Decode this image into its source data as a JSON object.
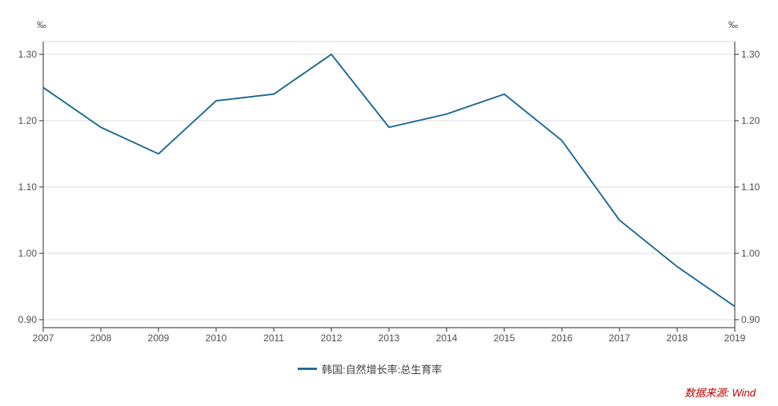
{
  "chart_data": {
    "type": "line",
    "title": "",
    "xlabel": "",
    "ylabel": "‰",
    "y2label": "‰",
    "x": [
      "2007",
      "2008",
      "2009",
      "2010",
      "2011",
      "2012",
      "2013",
      "2014",
      "2015",
      "2016",
      "2017",
      "2018",
      "2019"
    ],
    "series": [
      {
        "name": "韩国:自然增长率:总生育率",
        "color": "#2a7198",
        "values": [
          1.25,
          1.19,
          1.15,
          1.23,
          1.24,
          1.3,
          1.19,
          1.21,
          1.24,
          1.17,
          1.05,
          0.98,
          0.92
        ]
      }
    ],
    "yticks": [
      "0.90",
      "1.00",
      "1.10",
      "1.20",
      "1.30"
    ],
    "ylim": [
      0.88,
      1.32
    ],
    "grid": true,
    "legend_position": "bottom",
    "dual_axis": true
  },
  "axes": {
    "left_unit": "‰",
    "right_unit": "‰"
  },
  "legend": {
    "label": "韩国:自然增长率:总生育率"
  },
  "source": {
    "label": "数据来源: Wind"
  },
  "colors": {
    "line": "#2a7198",
    "grid": "#dddddd",
    "axis": "#333333",
    "source_text": "#c00000"
  }
}
